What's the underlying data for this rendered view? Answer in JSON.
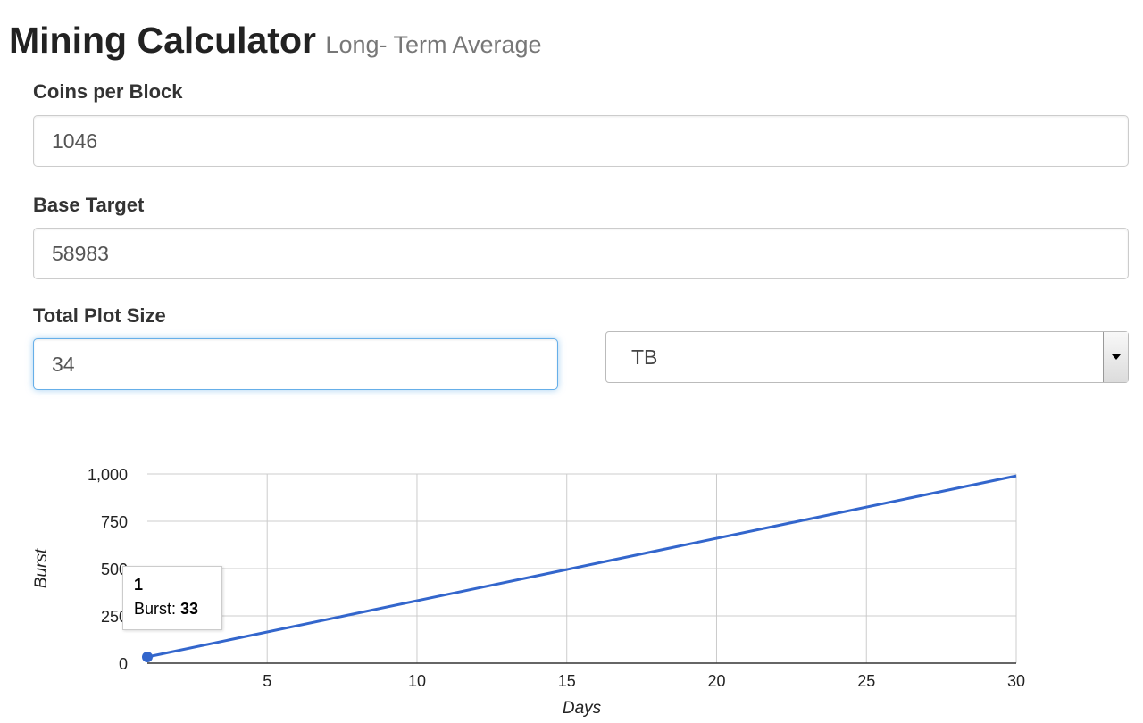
{
  "header": {
    "title": "Mining Calculator",
    "subtitle": "Long- Term Average"
  },
  "form": {
    "coins_per_block": {
      "label": "Coins per Block",
      "value": "1046"
    },
    "base_target": {
      "label": "Base Target",
      "value": "58983"
    },
    "total_plot_size": {
      "label": "Total Plot Size",
      "value": "34",
      "unit": "TB"
    }
  },
  "icons": {
    "select_arrow": "triangle-down-icon"
  },
  "colors": {
    "series": "#3366cc",
    "focus": "#66afe9"
  },
  "chart_data": {
    "type": "line",
    "x_label": "Days",
    "y_label": "Burst",
    "x_range": [
      1,
      30
    ],
    "y_range": [
      0,
      1000
    ],
    "x_ticks": [
      5,
      10,
      15,
      20,
      25,
      30
    ],
    "x_tick_labels": [
      "5",
      "10",
      "15",
      "20",
      "25",
      "30"
    ],
    "y_ticks": [
      0,
      250,
      500,
      750,
      1000
    ],
    "y_tick_labels": [
      "0",
      "250",
      "500",
      "750",
      "1,000"
    ],
    "grid": true,
    "legend": "none",
    "series": [
      {
        "name": "Burst",
        "x": [
          1,
          30
        ],
        "y": [
          33,
          990
        ]
      }
    ],
    "tooltip": {
      "title": "1",
      "label": "Burst:",
      "value": "33"
    }
  }
}
